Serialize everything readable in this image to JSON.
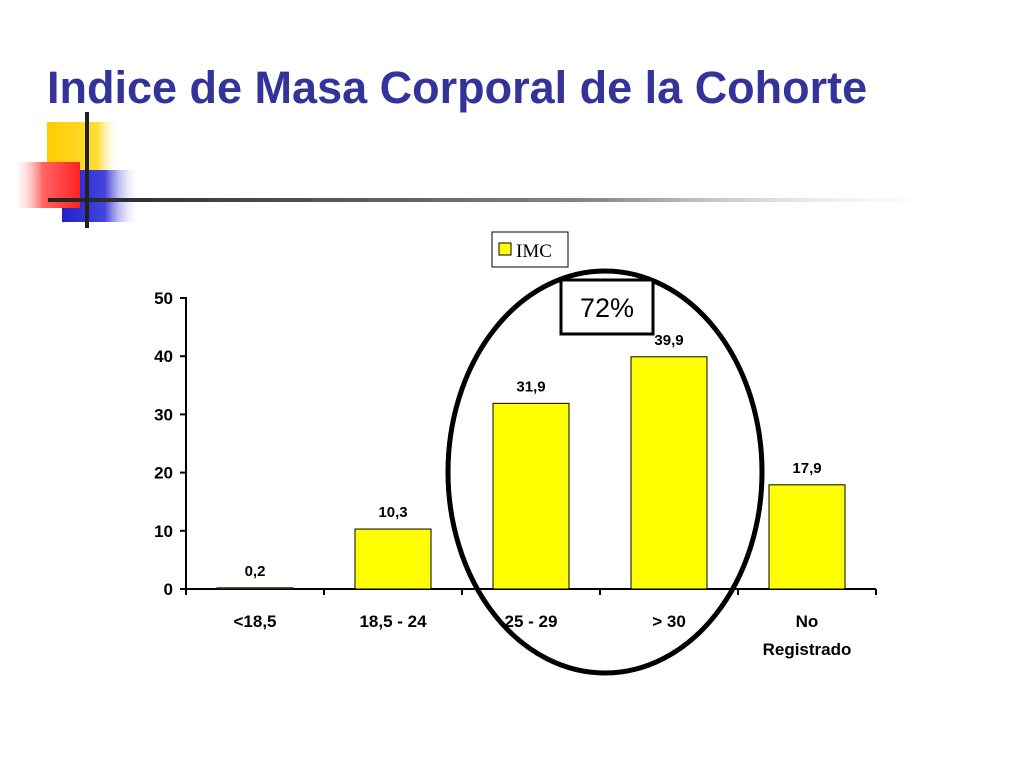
{
  "slide": {
    "title": "Indice de Masa Corporal de la Cohorte"
  },
  "colors": {
    "title": "#333399",
    "bar_fill": "#ffff00",
    "bar_stroke": "#000000",
    "decor_yellow": "#ffcc00",
    "decor_blue": "#3333cc",
    "decor_red": "#ff3333"
  },
  "chart_data": {
    "type": "bar",
    "categories": [
      "<18,5",
      "18,5 - 24",
      "25 - 29",
      "> 30",
      "No Registrado"
    ],
    "category_lines": [
      [
        "<18,5"
      ],
      [
        "18,5 - 24"
      ],
      [
        "25 - 29"
      ],
      [
        "> 30"
      ],
      [
        "No",
        "Registrado"
      ]
    ],
    "series": [
      {
        "name": "IMC",
        "values": [
          0.2,
          10.3,
          31.9,
          39.9,
          17.9
        ]
      }
    ],
    "data_labels": [
      "0,2",
      "10,3",
      "31,9",
      "39,9",
      "17,9"
    ],
    "ylim": [
      0,
      50
    ],
    "yticks": [
      0,
      10,
      20,
      30,
      40,
      50
    ],
    "grid": false,
    "legend_position": "top",
    "annotations": {
      "callout_text": "72%",
      "highlight": "ellipse around categories 25 - 29 and > 30"
    }
  }
}
